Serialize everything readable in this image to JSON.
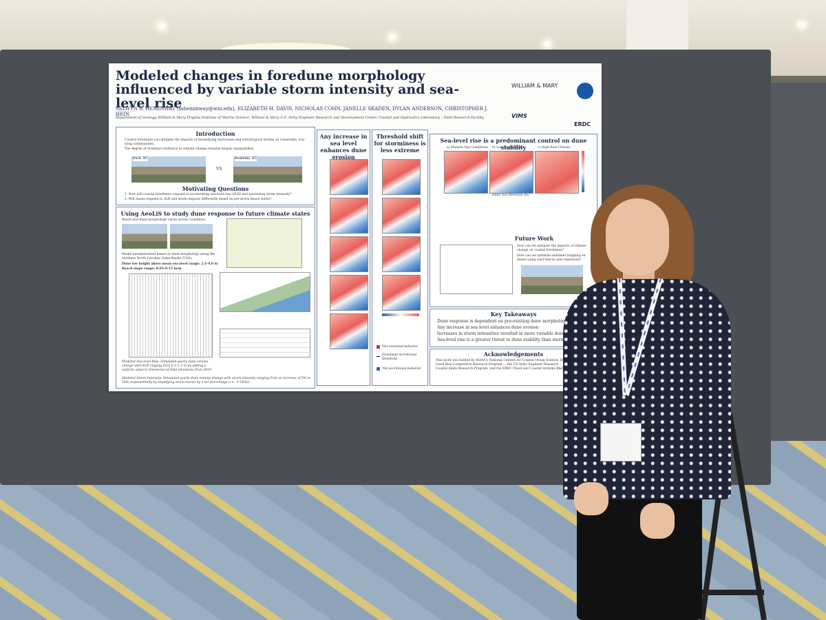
{
  "poster": {
    "title": "Modeled changes in foredune morphology influenced by variable storm intensity and sea-level rise",
    "authors": "SELWYN S. HEMINWAY (ssheminway@wm.edu), ELIZABETH H. DAVIS, NICHOLAS COHN, JANELLE SKADEN, DYLAN ANDERSON, CHRISTOPHER J. HEIN",
    "affiliations": "Department of Geology, William & Mary  Virginia Institute of Marine Science, William & Mary  U.S. Army Engineer Research and Development Center, Coastal and Hydraulics Laboratory – Field Research Facility",
    "logos": {
      "wm": "WILLIAM & MARY",
      "vims": "VIMS",
      "erdc": "ERDC"
    },
    "intro": {
      "heading": "Introduction",
      "b1": "Coastal foredunes can mitigate the impacts of intensifying hurricanes and extratropical storms on vulnerable, low-lying communities.",
      "b2": "The degree of foredune resilience to climate change remains largely unquantified.",
      "img1": "Duck, NC",
      "vs": "VS",
      "img2": "Rodanthe, NC"
    },
    "motivating": {
      "heading": "Motivating Questions",
      "q1": "1.  How will coastal foredunes respond to accelerating sea-level rise (SLR) and increasing storm intensity?",
      "q2": "2.  Will dunes respond to SLR and storm impacts differently based on pre-storm beach states?"
    },
    "methods": {
      "heading": "Using AeoLiS to study dune response to future climate states",
      "sub": "Beach and dune morphology varies across coastlines",
      "p1": "Model parameterized based on dune morphology along the northern North Carolina Outer Banks (USA):",
      "p2": "Dune toe height above mean sea-level range: 2.5–4.0 m",
      "p3": "Beach slope range: 0.05–0.15 m/m",
      "slr": "Modeled Sea-level Rise: Simulated yearly dune volume change with SLR ranging from 0.3–1.5 m by adding a uniform value to timeseries of tidal elevations from 2019",
      "storm": "Modeled Storm Intensity: Simulated yearly dune volume change with storm intensity ranging from an increase of 5% to 50% (exponentially by amplifying storm events by a set percentage (i.e., 5–50%))"
    },
    "col2": {
      "heading": "Any increase in sea level enhances dune erosion"
    },
    "col3": {
      "heading": "Threshold shift for storminess is less extreme"
    },
    "legend": {
      "a": "Net erosional behavior",
      "b": "Erosional/ accretional threshold",
      "c": "Net accretional behavior"
    },
    "results": {
      "heading": "Sea-level rise is a predominant control on dune stability",
      "a": "a) Modern Day Conditions",
      "b": "b) Low-Risk Climate",
      "c": "c) High-Risk Climate",
      "xlabel": "Dune Toe Elevation (m)"
    },
    "future": {
      "heading": "Future Work",
      "q1": "How can we mitigate the impacts of climate change on coastal foredunes?",
      "q2": "How can we optimize sediment trapping on dunes using sand fences and vegetation?"
    },
    "takeaways": {
      "heading": "Key Takeaways",
      "t1": "Dune response is dependent on pre-existing dune morphology",
      "t2": "Any increase in sea level enhances dune erosion",
      "t3": "Increases in storm intensities resulted in more variable dune g",
      "t4": "Sea-level rise is a greater threat to dune stability than storm"
    },
    "ack": {
      "heading": "Acknowledgements",
      "text": "This work was funded by NOAA's National Centers for Coastal Ocean Science, Effects of Sea Level Rise Competitive Research Program ... the US Army Engineer Research ... Center's (ERDC) Coastal Inlets Research Program, and the ERDC Flood and Coastal Systems R&D"
    }
  }
}
